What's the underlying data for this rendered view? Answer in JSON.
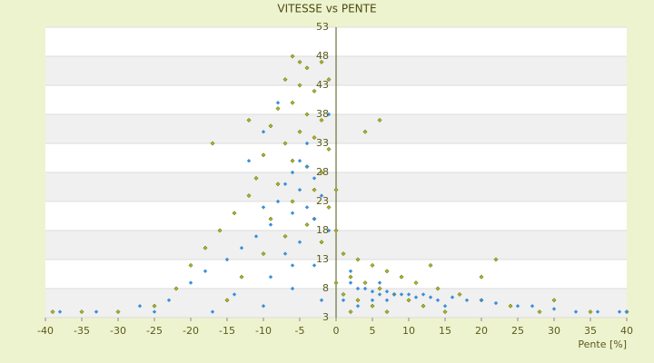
{
  "chart_data": {
    "type": "scatter",
    "title": "VITESSE vs PENTE",
    "x_label": "Pente [%]",
    "xlim": [
      -40,
      40
    ],
    "xticks": [
      -40,
      -35,
      -30,
      -25,
      -20,
      -15,
      -10,
      -5,
      0,
      5,
      10,
      15,
      20,
      25,
      30,
      35,
      40
    ],
    "ylim": [
      3,
      53
    ],
    "yticks": [
      3,
      8,
      13,
      18,
      23,
      28,
      33,
      38,
      43,
      48,
      53
    ],
    "grid": true,
    "series": [
      {
        "color": "#a8b420",
        "x": [
          -6,
          -5,
          -4,
          -7,
          -5,
          -3,
          -6,
          -8,
          -4,
          -2,
          -9,
          -5,
          -3,
          -7,
          -1,
          -10,
          -6,
          -4,
          -2,
          -11,
          -8,
          -3,
          -12,
          -6,
          -1,
          -14,
          -9,
          -4,
          -16,
          -7,
          -2,
          -18,
          -10,
          1,
          3,
          5,
          -20,
          7,
          2,
          9,
          -13,
          4,
          11,
          6,
          14,
          -22,
          1,
          8,
          17,
          3,
          10,
          20,
          -15,
          5,
          12,
          24,
          -25,
          2,
          7,
          15,
          28,
          -30,
          0,
          0,
          4,
          6,
          -2,
          -17,
          -12,
          -1,
          13,
          20,
          22,
          30,
          35,
          -35,
          40,
          -39,
          0,
          -3
        ],
        "values": [
          48,
          47,
          46,
          44,
          43,
          42,
          40,
          39,
          38,
          37,
          36,
          35,
          34,
          33,
          32,
          31,
          30,
          29,
          28,
          27,
          26,
          25,
          24,
          23,
          22,
          21,
          20,
          19,
          18,
          17,
          16,
          15,
          14,
          14,
          13,
          12,
          12,
          11,
          10,
          10,
          10,
          9,
          9,
          8,
          8,
          8,
          7,
          7,
          7,
          6,
          6,
          6,
          6,
          5,
          5,
          5,
          5,
          4,
          4,
          4,
          4,
          4,
          18,
          25,
          35,
          37,
          47,
          33,
          37,
          44,
          12,
          10,
          13,
          6,
          4,
          4,
          4,
          4,
          9,
          20
        ]
      },
      {
        "color": "#3a8fd8",
        "x": [
          -5,
          -4,
          -6,
          -3,
          -7,
          -5,
          -2,
          -8,
          -4,
          -6,
          -10,
          -3,
          -9,
          -1,
          -11,
          -5,
          -13,
          -7,
          -15,
          -3,
          -18,
          -9,
          -20,
          -6,
          -14,
          -2,
          -23,
          -10,
          -27,
          -17,
          -33,
          -38,
          2,
          3,
          4,
          5,
          6,
          7,
          8,
          9,
          10,
          11,
          12,
          13,
          14,
          16,
          18,
          20,
          22,
          25,
          27,
          30,
          33,
          36,
          39,
          40,
          1,
          3,
          5,
          7,
          -8,
          -10,
          -1,
          -4,
          2,
          6,
          -12,
          -6,
          -25,
          15
        ],
        "values": [
          30,
          29,
          28,
          27,
          26,
          25,
          24,
          23,
          22,
          21,
          22,
          20,
          19,
          18,
          17,
          16,
          15,
          14,
          13,
          12,
          11,
          10,
          9,
          8,
          7,
          6,
          6,
          5,
          5,
          4,
          4,
          4,
          9,
          8,
          8,
          7.5,
          7,
          7.5,
          7,
          7,
          7,
          6.5,
          7,
          6.5,
          6,
          6.5,
          6,
          6,
          5.5,
          5,
          5,
          4.5,
          4,
          4,
          4,
          4,
          6,
          5,
          6,
          6,
          40,
          35,
          38,
          33,
          11,
          9,
          30,
          12,
          4,
          5
        ]
      }
    ]
  }
}
